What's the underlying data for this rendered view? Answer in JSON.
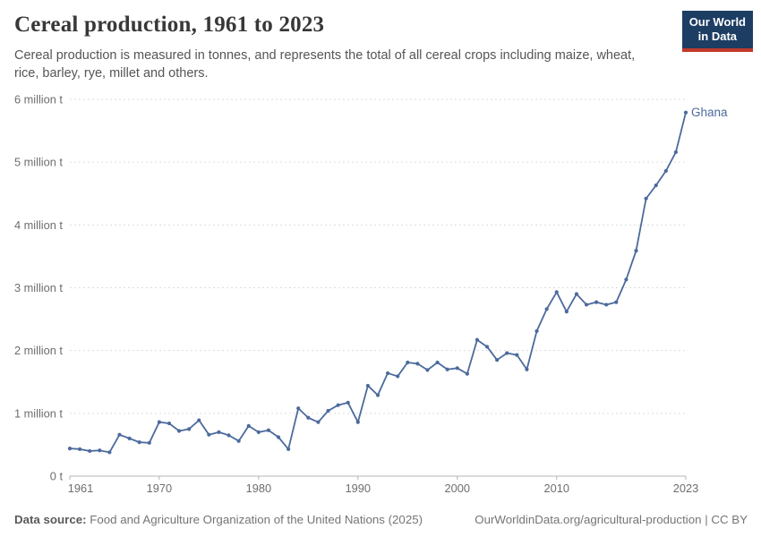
{
  "header": {
    "title": "Cereal production, 1961 to 2023",
    "subtitle": "Cereal production is measured in tonnes, and represents the total of all cereal crops including maize, wheat, rice, barley, rye, millet and others.",
    "logo": {
      "line1": "Our World",
      "line2": "in Data"
    }
  },
  "chart_data": {
    "type": "line",
    "title": "Cereal production, 1961 to 2023",
    "unit": "tonnes",
    "xlim": [
      1961,
      2023
    ],
    "ylim": [
      0,
      6000000
    ],
    "grid": "horizontal-dashed",
    "legend_position": "end-of-line-label",
    "x_ticks": [
      1961,
      1970,
      1980,
      1990,
      2000,
      2010,
      2023
    ],
    "y_ticks": [
      {
        "value": 0,
        "label": "0 t"
      },
      {
        "value": 1,
        "label": "1 million t"
      },
      {
        "value": 2,
        "label": "2 million t"
      },
      {
        "value": 3,
        "label": "3 million t"
      },
      {
        "value": 4,
        "label": "4 million t"
      },
      {
        "value": 5,
        "label": "5 million t"
      },
      {
        "value": 6,
        "label": "6 million t"
      }
    ],
    "y_unit_scale": "millions of tonnes",
    "series": [
      {
        "name": "Ghana",
        "color": "#4C6A9C",
        "x": [
          1961,
          1962,
          1963,
          1964,
          1965,
          1966,
          1967,
          1968,
          1969,
          1970,
          1971,
          1972,
          1973,
          1974,
          1975,
          1976,
          1977,
          1978,
          1979,
          1980,
          1981,
          1982,
          1983,
          1984,
          1985,
          1986,
          1987,
          1988,
          1989,
          1990,
          1991,
          1992,
          1993,
          1994,
          1995,
          1996,
          1997,
          1998,
          1999,
          2000,
          2001,
          2002,
          2003,
          2004,
          2005,
          2006,
          2007,
          2008,
          2009,
          2010,
          2011,
          2012,
          2013,
          2014,
          2015,
          2016,
          2017,
          2018,
          2019,
          2020,
          2021,
          2022,
          2023
        ],
        "values_million_t": [
          0.44,
          0.43,
          0.4,
          0.41,
          0.38,
          0.66,
          0.6,
          0.54,
          0.53,
          0.86,
          0.84,
          0.72,
          0.75,
          0.89,
          0.66,
          0.7,
          0.65,
          0.56,
          0.8,
          0.7,
          0.73,
          0.62,
          0.43,
          1.08,
          0.93,
          0.86,
          1.04,
          1.13,
          1.17,
          0.86,
          1.44,
          1.29,
          1.64,
          1.59,
          1.81,
          1.79,
          1.69,
          1.81,
          1.7,
          1.72,
          1.63,
          2.17,
          2.06,
          1.85,
          1.96,
          1.93,
          1.7,
          2.31,
          2.66,
          2.93,
          2.62,
          2.9,
          2.73,
          2.77,
          2.73,
          2.77,
          3.13,
          3.59,
          4.42,
          4.63,
          4.86,
          5.16,
          5.79
        ]
      }
    ],
    "end_label": "Ghana"
  },
  "footer": {
    "source_label": "Data source:",
    "source_text": " Food and Agriculture Organization of the United Nations (2025)",
    "link_text": "OurWorldinData.org/agricultural-production | CC BY"
  },
  "colors": {
    "line": "#4C6A9C",
    "gridline": "#dddddd",
    "axis": "#b5b5b5",
    "tick_label": "#6e6e6e",
    "logo_bg": "#1d3d63",
    "logo_red": "#c0392b",
    "title_text": "#383838",
    "subtitle_text": "#555555",
    "footer_text": "#757575"
  }
}
